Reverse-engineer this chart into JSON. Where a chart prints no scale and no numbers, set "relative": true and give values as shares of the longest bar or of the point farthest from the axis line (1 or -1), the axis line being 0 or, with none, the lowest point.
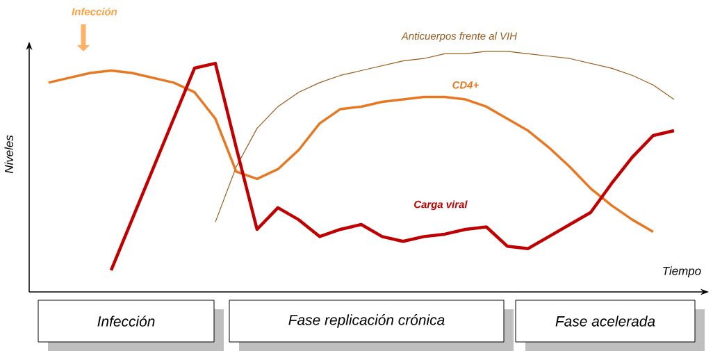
{
  "chart_data": {
    "type": "line",
    "relative": true,
    "xlabel": "Tiempo",
    "ylabel": "Niveles",
    "categories": [
      null,
      null,
      null,
      null,
      null,
      null,
      null,
      null,
      null,
      null,
      null,
      null,
      null,
      null,
      null,
      null,
      null,
      null,
      null,
      null,
      null,
      null,
      null,
      null,
      null,
      null,
      null,
      null,
      null,
      null,
      null,
      null
    ],
    "series": [
      {
        "name": "Anticuerpos frente al VIH",
        "color": "#9c5a1a",
        "values": [
          null,
          null,
          null,
          null,
          null,
          null,
          null,
          null,
          0.29,
          0.52,
          0.68,
          0.77,
          0.83,
          0.87,
          0.9,
          0.92,
          0.94,
          0.96,
          0.97,
          0.99,
          0.99,
          1.0,
          1.0,
          0.99,
          0.98,
          0.97,
          0.95,
          0.93,
          0.9,
          0.86,
          0.8,
          null
        ]
      },
      {
        "name": "CD4+",
        "color": "#e87722",
        "values": [
          0.87,
          0.89,
          0.91,
          0.92,
          0.91,
          0.89,
          0.87,
          0.83,
          0.72,
          0.5,
          0.47,
          0.51,
          0.59,
          0.7,
          0.76,
          0.77,
          0.79,
          0.8,
          0.81,
          0.81,
          0.8,
          0.77,
          0.72,
          0.67,
          0.6,
          0.52,
          0.43,
          0.36,
          0.3,
          0.25,
          null,
          null
        ]
      },
      {
        "name": "Carga viral",
        "color": "#c00000",
        "values": [
          null,
          null,
          null,
          0.09,
          0.3,
          0.51,
          0.72,
          0.93,
          0.95,
          0.6,
          0.26,
          0.35,
          0.3,
          0.23,
          0.26,
          0.28,
          0.23,
          0.21,
          0.23,
          0.24,
          0.26,
          0.27,
          0.19,
          0.18,
          0.23,
          0.28,
          0.33,
          0.45,
          0.56,
          0.65,
          0.67,
          null
        ]
      }
    ],
    "annotations": [
      "Infección",
      "Infección",
      "Fase replicación crónica",
      "Fase acelerada"
    ]
  }
}
